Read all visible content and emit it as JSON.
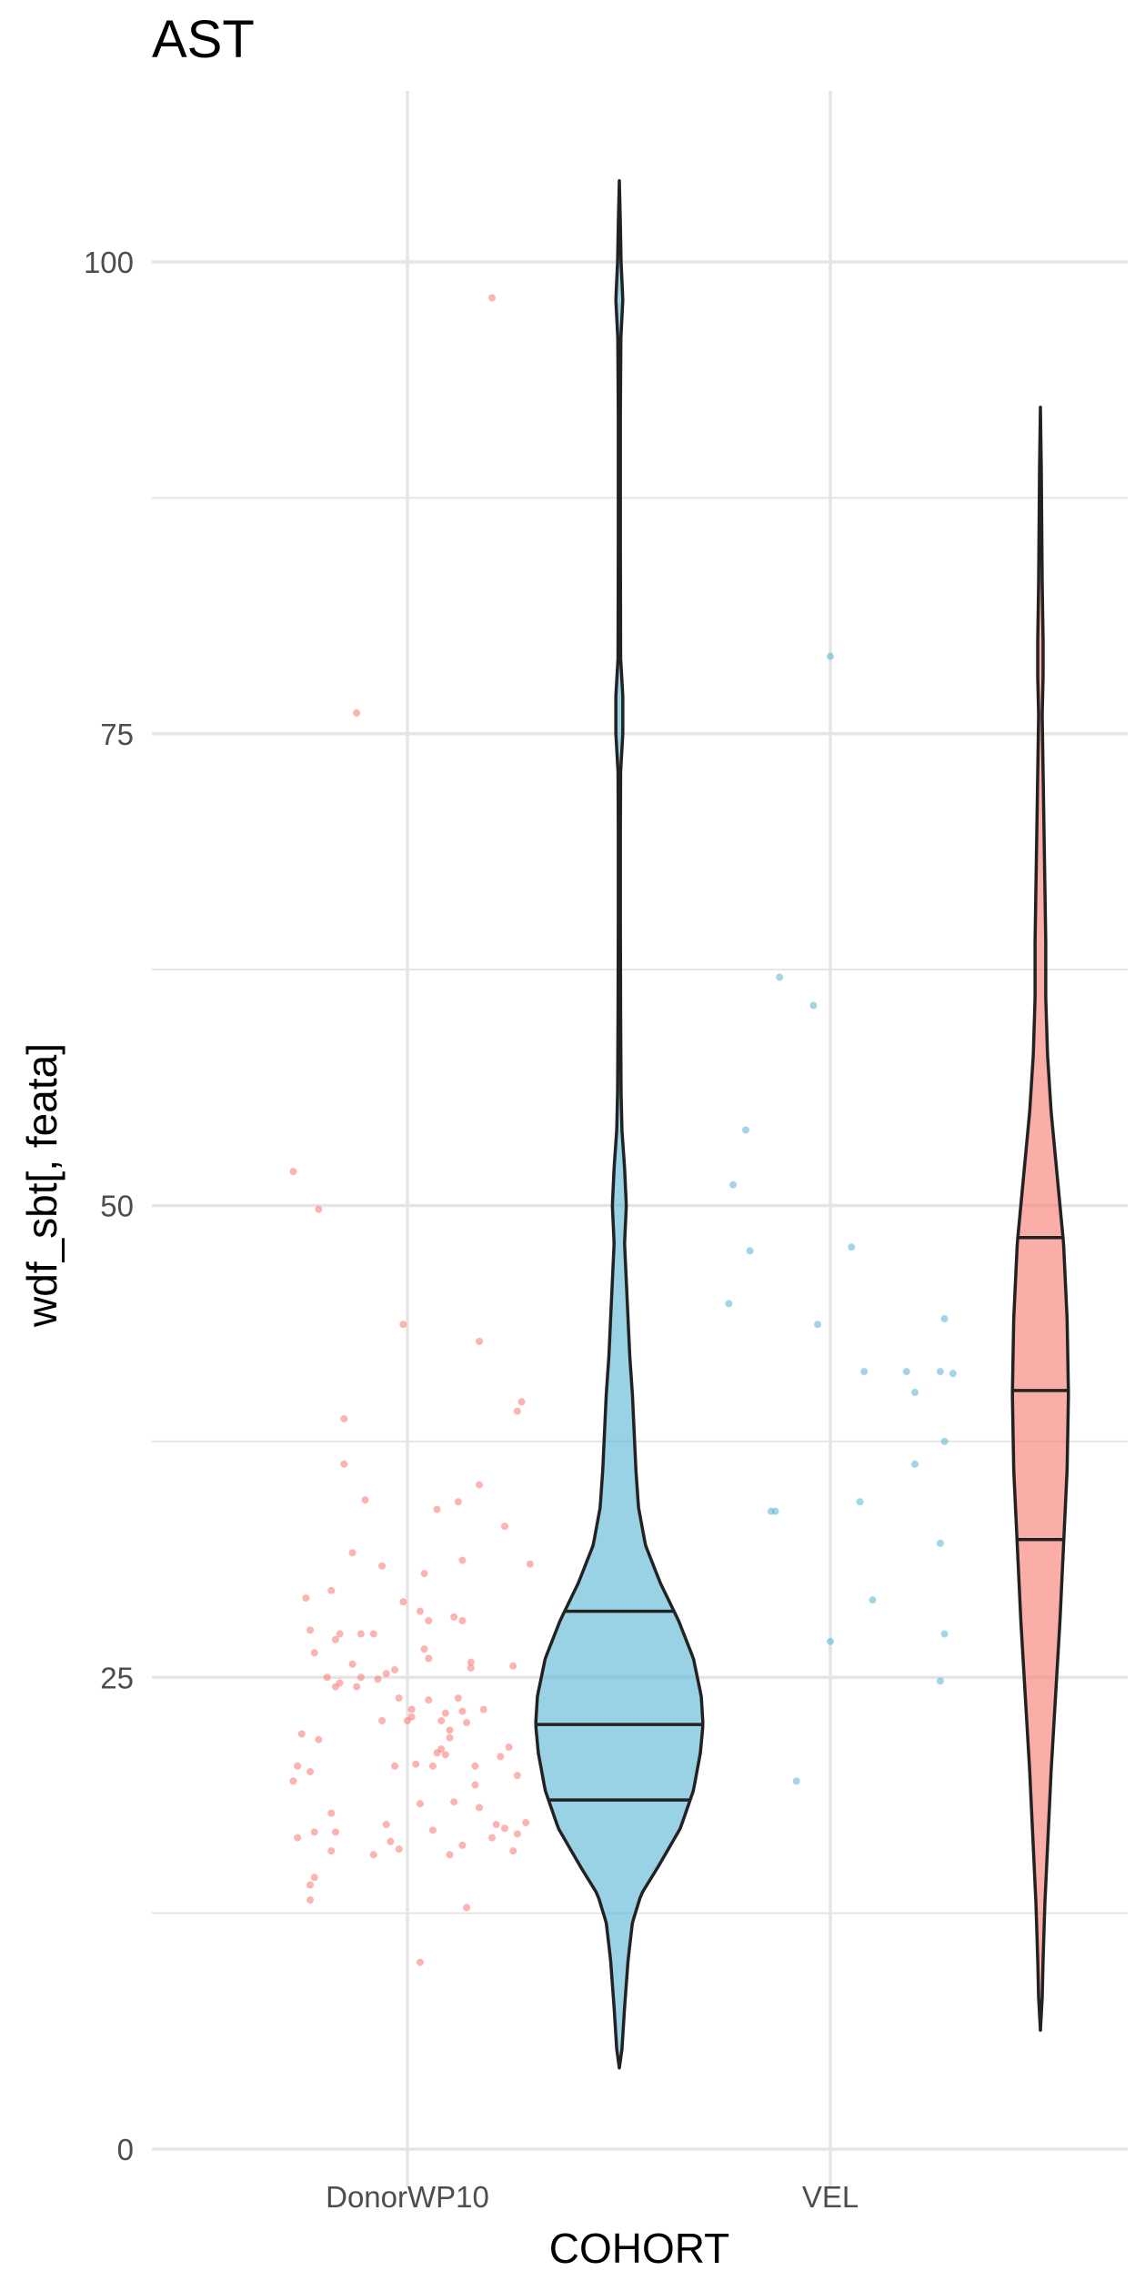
{
  "chart_data": {
    "type": "violin",
    "title": "AST",
    "xlabel": "COHORT",
    "ylabel": "wdf_sbt[, feata]",
    "categories": [
      "DonorWP10",
      "VEL"
    ],
    "ylim": [
      -1.5,
      109
    ],
    "y_ticks": [
      0,
      25,
      50,
      75,
      100
    ],
    "grid": true,
    "colors": {
      "DonorWP10": "#F8766D",
      "VEL": "#56B4D3",
      "outline": "#222222",
      "grid": "#e5e5e5"
    },
    "points": {
      "DonorWP10": [
        [
          -0.27,
          19.5
        ],
        [
          -0.26,
          20.3
        ],
        [
          -0.26,
          16.5
        ],
        [
          -0.24,
          29.2
        ],
        [
          -0.25,
          22
        ],
        [
          -0.23,
          27.5
        ],
        [
          -0.23,
          20
        ],
        [
          -0.22,
          26.3
        ],
        [
          -0.22,
          16.8
        ],
        [
          -0.23,
          14
        ],
        [
          -0.23,
          13.2
        ],
        [
          -0.22,
          14.4
        ],
        [
          -0.21,
          21.7
        ],
        [
          -0.19,
          25
        ],
        [
          -0.18,
          17.8
        ],
        [
          -0.18,
          15.8
        ],
        [
          -0.17,
          27
        ],
        [
          -0.17,
          24.5
        ],
        [
          -0.18,
          29.6
        ],
        [
          -0.16,
          27.3
        ],
        [
          -0.17,
          16.8
        ],
        [
          -0.16,
          24.7
        ],
        [
          -0.15,
          38.7
        ],
        [
          -0.15,
          36.3
        ],
        [
          -0.13,
          25.7
        ],
        [
          -0.12,
          24.5
        ],
        [
          -0.13,
          31.6
        ],
        [
          -0.11,
          27.3
        ],
        [
          -0.11,
          25
        ],
        [
          -0.1,
          34.4
        ],
        [
          -0.08,
          27.3
        ],
        [
          -0.08,
          15.6
        ],
        [
          -0.07,
          24.9
        ],
        [
          -0.06,
          30.9
        ],
        [
          -0.06,
          22.7
        ],
        [
          -0.05,
          17.2
        ],
        [
          -0.05,
          25.2
        ],
        [
          -0.04,
          16.3
        ],
        [
          -0.03,
          25.4
        ],
        [
          -0.03,
          20.3
        ],
        [
          -0.02,
          23.9
        ],
        [
          -0.02,
          15.9
        ],
        [
          -0.01,
          29
        ],
        [
          0,
          22.7
        ],
        [
          0.01,
          22.9
        ],
        [
          0.01,
          23.3
        ],
        [
          0.02,
          20.4
        ],
        [
          0.03,
          18.3
        ],
        [
          0.03,
          28.5
        ],
        [
          0.03,
          9.9
        ],
        [
          0.04,
          30.5
        ],
        [
          0.04,
          26.5
        ],
        [
          0.05,
          23.8
        ],
        [
          0.05,
          26
        ],
        [
          0.05,
          28
        ],
        [
          0.06,
          20.3
        ],
        [
          0.06,
          16.9
        ],
        [
          0.07,
          21
        ],
        [
          0.07,
          33.9
        ],
        [
          0.08,
          22.7
        ],
        [
          0.08,
          21.2
        ],
        [
          0.09,
          23.1
        ],
        [
          0.09,
          20.9
        ],
        [
          0.1,
          22.2
        ],
        [
          0.1,
          21.8
        ],
        [
          0.1,
          15.6
        ],
        [
          0.11,
          18.4
        ],
        [
          0.11,
          28.2
        ],
        [
          0.12,
          23.9
        ],
        [
          0.12,
          34.3
        ],
        [
          0.13,
          16.1
        ],
        [
          0.13,
          23.2
        ],
        [
          0.13,
          31.2
        ],
        [
          0.13,
          28
        ],
        [
          0.14,
          12.8
        ],
        [
          0.14,
          22.6
        ],
        [
          0.15,
          25.8
        ],
        [
          0.15,
          25.5
        ],
        [
          0.16,
          19.3
        ],
        [
          0.16,
          20.3
        ],
        [
          0.17,
          42.8
        ],
        [
          0.17,
          35.2
        ],
        [
          0.17,
          18.1
        ],
        [
          0.18,
          23.3
        ],
        [
          0.2,
          16.5
        ],
        [
          0.21,
          17.2
        ],
        [
          0.22,
          20.8
        ],
        [
          0.23,
          33
        ],
        [
          0.23,
          17
        ],
        [
          0.24,
          21.3
        ],
        [
          0.25,
          15.8
        ],
        [
          0.25,
          25.6
        ],
        [
          0.26,
          16.7
        ],
        [
          0.26,
          19.8
        ],
        [
          0.26,
          39.1
        ],
        [
          0.27,
          39.6
        ],
        [
          0.28,
          17.3
        ],
        [
          0.29,
          31
        ],
        [
          0.2,
          98.1
        ],
        [
          -0.12,
          76.1
        ],
        [
          -0.27,
          51.8
        ],
        [
          -0.21,
          49.8
        ],
        [
          -0.01,
          43.7
        ]
      ],
      "VEL": [
        [
          -0.24,
          44.8
        ],
        [
          -0.23,
          51.1
        ],
        [
          -0.2,
          54
        ],
        [
          -0.19,
          47.6
        ],
        [
          -0.14,
          33.8
        ],
        [
          -0.13,
          33.8
        ],
        [
          -0.12,
          62.1
        ],
        [
          -0.08,
          19.5
        ],
        [
          -0.04,
          60.6
        ],
        [
          -0.03,
          43.7
        ],
        [
          0,
          79.1
        ],
        [
          0,
          26.9
        ],
        [
          0.05,
          47.8
        ],
        [
          0.07,
          34.3
        ],
        [
          0.08,
          41.2
        ],
        [
          0.1,
          29.1
        ],
        [
          0.18,
          41.2
        ],
        [
          0.2,
          36.3
        ],
        [
          0.2,
          40.1
        ],
        [
          0.26,
          41.2
        ],
        [
          0.26,
          32.1
        ],
        [
          0.27,
          37.5
        ],
        [
          0.27,
          27.3
        ],
        [
          0.26,
          24.8
        ],
        [
          0.27,
          44
        ],
        [
          0.29,
          41.1
        ]
      ]
    },
    "violins": {
      "VEL_group_blue": {
        "fill": "#56B4D3",
        "quantiles": [
          18.5,
          22.5,
          28.5
        ],
        "profile": [
          [
            4.3,
            0
          ],
          [
            5.3,
            0.003
          ],
          [
            7.5,
            0.006
          ],
          [
            10,
            0.01
          ],
          [
            12,
            0.015
          ],
          [
            13.5,
            0.025
          ],
          [
            15,
            0.045
          ],
          [
            17,
            0.07
          ],
          [
            19,
            0.085
          ],
          [
            21,
            0.093
          ],
          [
            22.5,
            0.096
          ],
          [
            24,
            0.094
          ],
          [
            26,
            0.085
          ],
          [
            28,
            0.068
          ],
          [
            30,
            0.047
          ],
          [
            32,
            0.03
          ],
          [
            34,
            0.022
          ],
          [
            36,
            0.019
          ],
          [
            38,
            0.017
          ],
          [
            40,
            0.015
          ],
          [
            42,
            0.012
          ],
          [
            44,
            0.01
          ],
          [
            46,
            0.008
          ],
          [
            48,
            0.006
          ],
          [
            50,
            0.008
          ],
          [
            52,
            0.006
          ],
          [
            54,
            0.003
          ],
          [
            56,
            0.002
          ],
          [
            60,
            0.0015
          ],
          [
            65,
            0.0012
          ],
          [
            70,
            0.0012
          ],
          [
            73,
            0.0015
          ],
          [
            75,
            0.004
          ],
          [
            77,
            0.004
          ],
          [
            79,
            0.0015
          ],
          [
            85,
            0.0012
          ],
          [
            92,
            0.0012
          ],
          [
            96,
            0.0018
          ],
          [
            98,
            0.004
          ],
          [
            100,
            0.002
          ],
          [
            102,
            0.0012
          ],
          [
            104.3,
            0
          ]
        ]
      },
      "DonorWP10_group_red": {
        "fill": "#F8766D",
        "quantiles": [
          32.3,
          40.2,
          48.3
        ],
        "profile": [
          [
            6.3,
            0
          ],
          [
            8,
            0.002
          ],
          [
            10,
            0.003
          ],
          [
            13,
            0.005
          ],
          [
            16,
            0.008
          ],
          [
            20,
            0.012
          ],
          [
            24,
            0.017
          ],
          [
            28,
            0.022
          ],
          [
            32,
            0.026
          ],
          [
            36,
            0.03
          ],
          [
            40,
            0.0315
          ],
          [
            44,
            0.03
          ],
          [
            48,
            0.026
          ],
          [
            52,
            0.018
          ],
          [
            55,
            0.012
          ],
          [
            58,
            0.008
          ],
          [
            61,
            0.006
          ],
          [
            64,
            0.006
          ],
          [
            67,
            0.005
          ],
          [
            70,
            0.004
          ],
          [
            73,
            0.003
          ],
          [
            76,
            0.002
          ],
          [
            78,
            0.003
          ],
          [
            80,
            0.003
          ],
          [
            83,
            0.002
          ],
          [
            86,
            0.0015
          ],
          [
            89,
            0.001
          ],
          [
            92.3,
            0
          ]
        ]
      }
    }
  }
}
